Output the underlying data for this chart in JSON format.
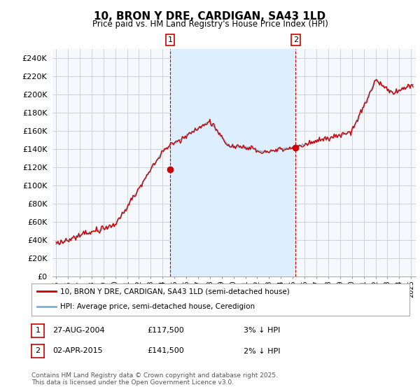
{
  "title": "10, BRON Y DRE, CARDIGAN, SA43 1LD",
  "subtitle": "Price paid vs. HM Land Registry's House Price Index (HPI)",
  "ylim": [
    0,
    250000
  ],
  "yticks": [
    0,
    20000,
    40000,
    60000,
    80000,
    100000,
    120000,
    140000,
    160000,
    180000,
    200000,
    220000,
    240000
  ],
  "ytick_labels": [
    "£0",
    "£20K",
    "£40K",
    "£60K",
    "£80K",
    "£100K",
    "£120K",
    "£140K",
    "£160K",
    "£180K",
    "£200K",
    "£220K",
    "£240K"
  ],
  "hpi_color": "#7bafd4",
  "price_color": "#cc0000",
  "shade_color": "#ddeeff",
  "marker1_year_float": 2004.646,
  "marker1_price": 117500,
  "marker1_label": "£117,500",
  "marker1_date": "27-AUG-2004",
  "marker1_hpi_diff": "3% ↓ HPI",
  "marker2_year_float": 2015.25,
  "marker2_price": 141500,
  "marker2_label": "£141,500",
  "marker2_date": "02-APR-2015",
  "marker2_hpi_diff": "2% ↓ HPI",
  "legend_line1": "10, BRON Y DRE, CARDIGAN, SA43 1LD (semi-detached house)",
  "legend_line2": "HPI: Average price, semi-detached house, Ceredigion",
  "footnote_line1": "Contains HM Land Registry data © Crown copyright and database right 2025.",
  "footnote_line2": "This data is licensed under the Open Government Licence v3.0.",
  "background_color": "#ffffff",
  "plot_bg_color": "#f5f8fc",
  "grid_color": "#cccccc"
}
